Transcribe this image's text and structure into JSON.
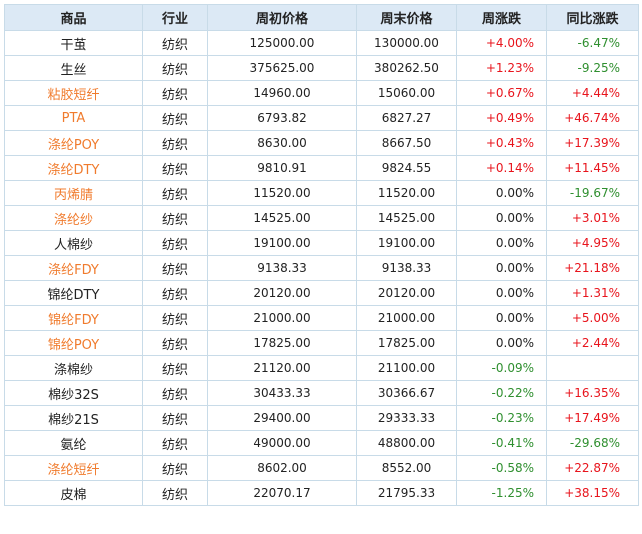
{
  "headers": [
    "商品",
    "行业",
    "周初价格",
    "周末价格",
    "周涨跌",
    "同比涨跌"
  ],
  "colors": {
    "up": "#e8141c",
    "down": "#2f8f2f",
    "link": "#f07b2d",
    "header_bg": "#dce9f5"
  },
  "rows": [
    {
      "name": "干茧",
      "link": false,
      "industry": "纺织",
      "open": "125000.00",
      "close": "130000.00",
      "weekly": "+4.00%",
      "weekly_dir": "up",
      "yoy": "-6.47%",
      "yoy_dir": "down"
    },
    {
      "name": "生丝",
      "link": false,
      "industry": "纺织",
      "open": "375625.00",
      "close": "380262.50",
      "weekly": "+1.23%",
      "weekly_dir": "up",
      "yoy": "-9.25%",
      "yoy_dir": "down"
    },
    {
      "name": "粘胶短纤",
      "link": true,
      "industry": "纺织",
      "open": "14960.00",
      "close": "15060.00",
      "weekly": "+0.67%",
      "weekly_dir": "up",
      "yoy": "+4.44%",
      "yoy_dir": "up"
    },
    {
      "name": "PTA",
      "link": true,
      "industry": "纺织",
      "open": "6793.82",
      "close": "6827.27",
      "weekly": "+0.49%",
      "weekly_dir": "up",
      "yoy": "+46.74%",
      "yoy_dir": "up"
    },
    {
      "name": "涤纶POY",
      "link": true,
      "industry": "纺织",
      "open": "8630.00",
      "close": "8667.50",
      "weekly": "+0.43%",
      "weekly_dir": "up",
      "yoy": "+17.39%",
      "yoy_dir": "up"
    },
    {
      "name": "涤纶DTY",
      "link": true,
      "industry": "纺织",
      "open": "9810.91",
      "close": "9824.55",
      "weekly": "+0.14%",
      "weekly_dir": "up",
      "yoy": "+11.45%",
      "yoy_dir": "up"
    },
    {
      "name": "丙烯腈",
      "link": true,
      "industry": "纺织",
      "open": "11520.00",
      "close": "11520.00",
      "weekly": "0.00%",
      "weekly_dir": "flat",
      "yoy": "-19.67%",
      "yoy_dir": "down"
    },
    {
      "name": "涤纶纱",
      "link": true,
      "industry": "纺织",
      "open": "14525.00",
      "close": "14525.00",
      "weekly": "0.00%",
      "weekly_dir": "flat",
      "yoy": "+3.01%",
      "yoy_dir": "up"
    },
    {
      "name": "人棉纱",
      "link": false,
      "industry": "纺织",
      "open": "19100.00",
      "close": "19100.00",
      "weekly": "0.00%",
      "weekly_dir": "flat",
      "yoy": "+4.95%",
      "yoy_dir": "up"
    },
    {
      "name": "涤纶FDY",
      "link": true,
      "industry": "纺织",
      "open": "9138.33",
      "close": "9138.33",
      "weekly": "0.00%",
      "weekly_dir": "flat",
      "yoy": "+21.18%",
      "yoy_dir": "up"
    },
    {
      "name": "锦纶DTY",
      "link": false,
      "industry": "纺织",
      "open": "20120.00",
      "close": "20120.00",
      "weekly": "0.00%",
      "weekly_dir": "flat",
      "yoy": "+1.31%",
      "yoy_dir": "up"
    },
    {
      "name": "锦纶FDY",
      "link": true,
      "industry": "纺织",
      "open": "21000.00",
      "close": "21000.00",
      "weekly": "0.00%",
      "weekly_dir": "flat",
      "yoy": "+5.00%",
      "yoy_dir": "up"
    },
    {
      "name": "锦纶POY",
      "link": true,
      "industry": "纺织",
      "open": "17825.00",
      "close": "17825.00",
      "weekly": "0.00%",
      "weekly_dir": "flat",
      "yoy": "+2.44%",
      "yoy_dir": "up"
    },
    {
      "name": "涤棉纱",
      "link": false,
      "industry": "纺织",
      "open": "21120.00",
      "close": "21100.00",
      "weekly": "-0.09%",
      "weekly_dir": "down",
      "yoy": "",
      "yoy_dir": "flat"
    },
    {
      "name": "棉纱32S",
      "link": false,
      "industry": "纺织",
      "open": "30433.33",
      "close": "30366.67",
      "weekly": "-0.22%",
      "weekly_dir": "down",
      "yoy": "+16.35%",
      "yoy_dir": "up"
    },
    {
      "name": "棉纱21S",
      "link": false,
      "industry": "纺织",
      "open": "29400.00",
      "close": "29333.33",
      "weekly": "-0.23%",
      "weekly_dir": "down",
      "yoy": "+17.49%",
      "yoy_dir": "up"
    },
    {
      "name": "氨纶",
      "link": false,
      "industry": "纺织",
      "open": "49000.00",
      "close": "48800.00",
      "weekly": "-0.41%",
      "weekly_dir": "down",
      "yoy": "-29.68%",
      "yoy_dir": "down"
    },
    {
      "name": "涤纶短纤",
      "link": true,
      "industry": "纺织",
      "open": "8602.00",
      "close": "8552.00",
      "weekly": "-0.58%",
      "weekly_dir": "down",
      "yoy": "+22.87%",
      "yoy_dir": "up"
    },
    {
      "name": "皮棉",
      "link": false,
      "industry": "纺织",
      "open": "22070.17",
      "close": "21795.33",
      "weekly": "-1.25%",
      "weekly_dir": "down",
      "yoy": "+38.15%",
      "yoy_dir": "up"
    }
  ]
}
